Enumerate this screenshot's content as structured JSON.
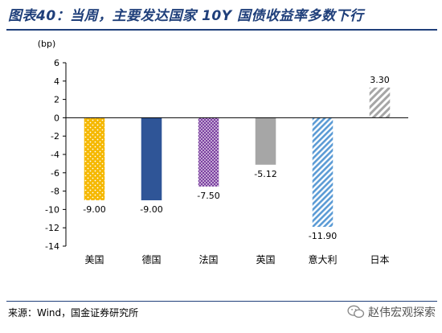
{
  "header": {
    "title": "图表40：当周，主要发达国家 10Y 国债收益率多数下行"
  },
  "chart_data": {
    "type": "bar",
    "ylabel": "(bp)",
    "ylim": [
      -14,
      6
    ],
    "yticks": [
      6,
      4,
      2,
      0,
      -2,
      -4,
      -6,
      -8,
      -10,
      -12,
      -14
    ],
    "categories": [
      "美国",
      "德国",
      "法国",
      "英国",
      "意大利",
      "日本"
    ],
    "values": [
      -9.0,
      -9.0,
      -7.5,
      -5.12,
      -11.9,
      3.3
    ],
    "data_labels": [
      "-9.00",
      "-9.00",
      "-7.50",
      "-5.12",
      "-11.90",
      "3.30"
    ],
    "colors": [
      "#f5b800",
      "#2f5597",
      "#7b3fa0",
      "#a6a6a6",
      "#5b9bd5",
      "#a6a6a6"
    ],
    "patterns": [
      "dots",
      "solid",
      "dots",
      "solid",
      "diagonal-stripes",
      "diagonal-stripes"
    ],
    "grid": false,
    "legend": "none"
  },
  "footer": {
    "source": "来源：Wind，国金证券研究所",
    "watermark": "赵伟宏观探索",
    "watermark_icon": "wechat-icon"
  }
}
